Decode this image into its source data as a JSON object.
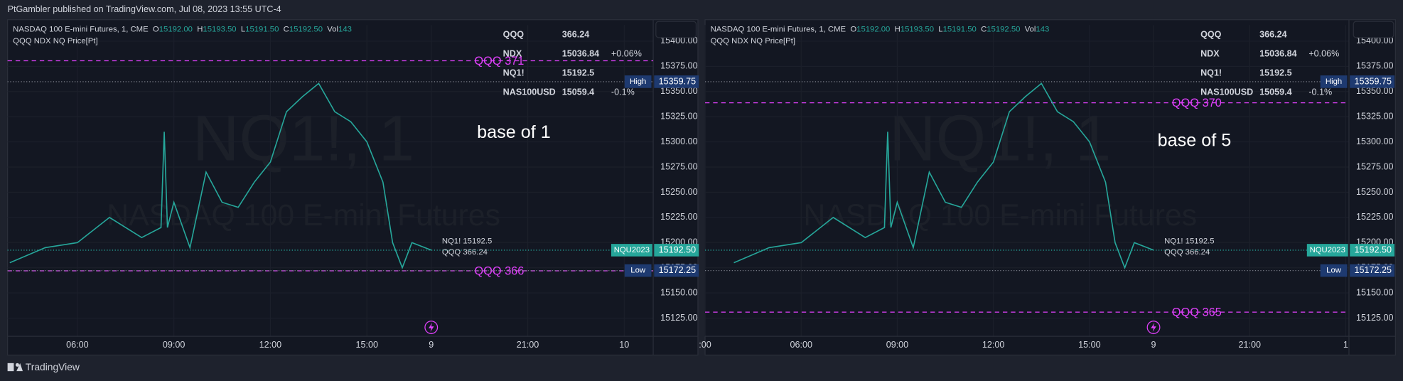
{
  "header": {
    "title": "PtGambler published on TradingView.com, Jul 08, 2023 13:55 UTC-4"
  },
  "footer": {
    "brand": "TradingView"
  },
  "chart_data": [
    {
      "type": "line",
      "title": "NASDAQ 100 E-mini Futures, 1, CME",
      "ohlc": [
        {
          "key": "O",
          "value": "15192.00"
        },
        {
          "key": "H",
          "value": "15193.50"
        },
        {
          "key": "L",
          "value": "15191.50"
        },
        {
          "key": "C",
          "value": "15192.50"
        },
        {
          "key": "Vol",
          "value": "143"
        }
      ],
      "indicator": "QQQ NDX NQ Price[Pt]",
      "watermark": [
        "NQ1!, 1",
        "NASDAQ 100 E-mini Futures"
      ],
      "annotation": "base of 1",
      "symbols": [
        {
          "name": "QQQ",
          "price": "366.24"
        },
        {
          "name": "NDX",
          "price": "15036.84",
          "change": "+0.06%"
        },
        {
          "name": "NQ1!",
          "price": "15192.5"
        },
        {
          "name": "NAS100USD",
          "price": "15059.4",
          "change": "-0.1%"
        }
      ],
      "color": "#26a69a",
      "x": [
        3.9,
        5,
        6,
        7,
        8,
        8.6,
        8.7,
        8.8,
        9,
        9.5,
        10,
        10.5,
        11,
        11.5,
        12,
        12.5,
        13,
        13.5,
        14,
        14.5,
        15,
        15.5,
        15.8,
        16.1,
        16.4,
        17
      ],
      "values": [
        15180,
        15195,
        15200,
        15225,
        15205,
        15215,
        15310,
        15215,
        15240,
        15195,
        15270,
        15240,
        15235,
        15260,
        15280,
        15330,
        15345,
        15358,
        15330,
        15320,
        15300,
        15260,
        15200,
        15175,
        15200,
        15192.5
      ],
      "levels": [
        {
          "label": "QQQ 371",
          "value": 15380.5
        },
        {
          "label": "QQQ 366",
          "value": 15172
        }
      ],
      "high": {
        "label": "High",
        "value": 15359.75
      },
      "low": {
        "label": "Low",
        "value": 15172.25
      },
      "last": {
        "symbol": "NQU2023",
        "value": 15192.5,
        "value_label": "15192.50"
      },
      "price_labels": [
        "NQ1! 15192.5",
        "QQQ 366.24"
      ],
      "xlim": [
        3.83,
        23.9
      ],
      "xticks": [
        {
          "value": 6,
          "label": "06:00"
        },
        {
          "value": 9,
          "label": "09:00"
        },
        {
          "value": 12,
          "label": "12:00"
        },
        {
          "value": 15,
          "label": "15:00"
        },
        {
          "value": 17,
          "label": "9"
        },
        {
          "value": 20,
          "label": "21:00"
        },
        {
          "value": 23,
          "label": "10"
        }
      ],
      "ylim": [
        15107,
        15416
      ],
      "yticks": [
        {
          "value": 15125,
          "label": "15125.00"
        },
        {
          "value": 15150,
          "label": "15150.00"
        },
        {
          "value": 15175,
          "label": "15175.00"
        },
        {
          "value": 15200,
          "label": "15200.00"
        },
        {
          "value": 15225,
          "label": "15225.00"
        },
        {
          "value": 15250,
          "label": "15250.00"
        },
        {
          "value": 15275,
          "label": "15275.00"
        },
        {
          "value": 15300,
          "label": "15300.00"
        },
        {
          "value": 15325,
          "label": "15325.00"
        },
        {
          "value": 15350,
          "label": "15350.00"
        },
        {
          "value": 15375,
          "label": "15375.00"
        },
        {
          "value": 15400,
          "label": "15400.00"
        }
      ]
    },
    {
      "type": "line",
      "title": "NASDAQ 100 E-mini Futures, 1, CME",
      "ohlc": [
        {
          "key": "O",
          "value": "15192.00"
        },
        {
          "key": "H",
          "value": "15193.50"
        },
        {
          "key": "L",
          "value": "15191.50"
        },
        {
          "key": "C",
          "value": "15192.50"
        },
        {
          "key": "Vol",
          "value": "143"
        }
      ],
      "indicator": "QQQ NDX NQ Price[Pt]",
      "watermark": [
        "NQ1!, 1",
        "NASDAQ 100 E-mini Futures"
      ],
      "annotation": "base of 5",
      "symbols": [
        {
          "name": "QQQ",
          "price": "366.24"
        },
        {
          "name": "NDX",
          "price": "15036.84",
          "change": "+0.06%"
        },
        {
          "name": "NQ1!",
          "price": "15192.5"
        },
        {
          "name": "NAS100USD",
          "price": "15059.4",
          "change": "-0.1%"
        }
      ],
      "color": "#26a69a",
      "x": [
        3.9,
        5,
        6,
        7,
        8,
        8.6,
        8.7,
        8.8,
        9,
        9.5,
        10,
        10.5,
        11,
        11.5,
        12,
        12.5,
        13,
        13.5,
        14,
        14.5,
        15,
        15.5,
        15.8,
        16.1,
        16.4,
        17
      ],
      "values": [
        15180,
        15195,
        15200,
        15225,
        15205,
        15215,
        15310,
        15215,
        15240,
        15195,
        15270,
        15240,
        15235,
        15260,
        15280,
        15330,
        15345,
        15358,
        15330,
        15320,
        15300,
        15260,
        15200,
        15175,
        15200,
        15192.5
      ],
      "levels": [
        {
          "label": "QQQ 370",
          "value": 15338.8
        },
        {
          "label": "QQQ 365",
          "value": 15131
        }
      ],
      "high": {
        "label": "High",
        "value": 15359.75
      },
      "low": {
        "label": "Low",
        "value": 15172.25
      },
      "last": {
        "symbol": "NQU2023",
        "value": 15192.5,
        "value_label": "15192.50"
      },
      "price_labels": [
        "NQ1! 15192.5",
        "QQQ 366.24"
      ],
      "xlim": [
        3,
        23.1
      ],
      "xticks": [
        {
          "value": 3,
          "label": ":00"
        },
        {
          "value": 6,
          "label": "06:00"
        },
        {
          "value": 9,
          "label": "09:00"
        },
        {
          "value": 12,
          "label": "12:00"
        },
        {
          "value": 15,
          "label": "15:00"
        },
        {
          "value": 17,
          "label": "9"
        },
        {
          "value": 20,
          "label": "21:00"
        },
        {
          "value": 23,
          "label": "1"
        }
      ],
      "ylim": [
        15107,
        15416
      ],
      "yticks": [
        {
          "value": 15125,
          "label": "15125.00"
        },
        {
          "value": 15150,
          "label": "15150.00"
        },
        {
          "value": 15175,
          "label": "15175.00"
        },
        {
          "value": 15200,
          "label": "15200.00"
        },
        {
          "value": 15225,
          "label": "15225.00"
        },
        {
          "value": 15250,
          "label": "15250.00"
        },
        {
          "value": 15275,
          "label": "15275.00"
        },
        {
          "value": 15300,
          "label": "15300.00"
        },
        {
          "value": 15325,
          "label": "15325.00"
        },
        {
          "value": 15350,
          "label": "15350.00"
        },
        {
          "value": 15375,
          "label": "15375.00"
        },
        {
          "value": 15400,
          "label": "15400.00"
        }
      ]
    }
  ]
}
